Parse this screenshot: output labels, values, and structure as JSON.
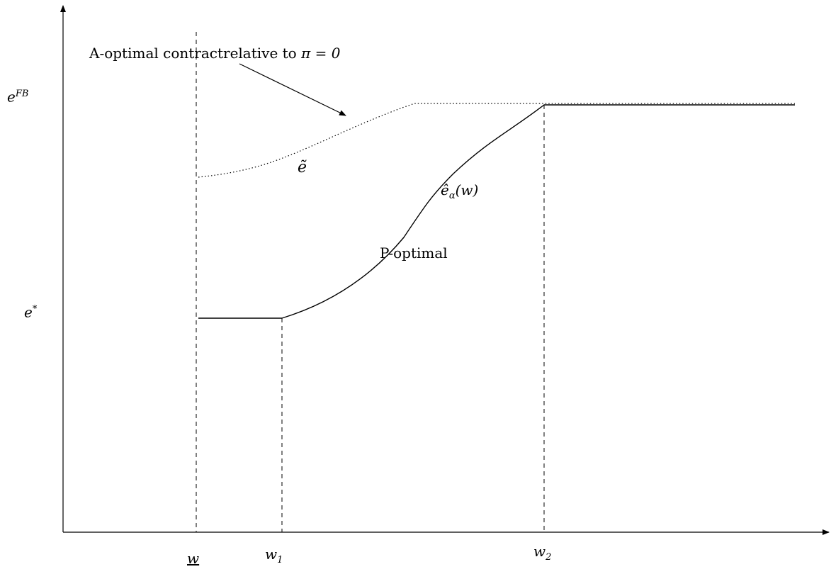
{
  "diagram": {
    "y_tick_labels": {
      "e_fb": {
        "base": "e",
        "sup": "FB"
      },
      "e_star": {
        "base": "e",
        "sup": "*"
      }
    },
    "x_tick_labels": {
      "w_underline": {
        "base": "w"
      },
      "w1": {
        "base": "w",
        "sub": "1"
      },
      "w2": {
        "base": "w",
        "sub": "2"
      }
    },
    "annotations": {
      "a_optimal_text": "A-optimal contractrelative to ",
      "a_optimal_math": "π = 0",
      "e_tilde": "ẽ",
      "e_hat_alpha_base": "ê",
      "e_hat_alpha_sub": "α",
      "e_hat_alpha_arg": "(w)",
      "p_optimal": "P-optimal"
    },
    "curves": {
      "a_optimal_style": "dotted",
      "p_optimal_style": "solid"
    }
  }
}
